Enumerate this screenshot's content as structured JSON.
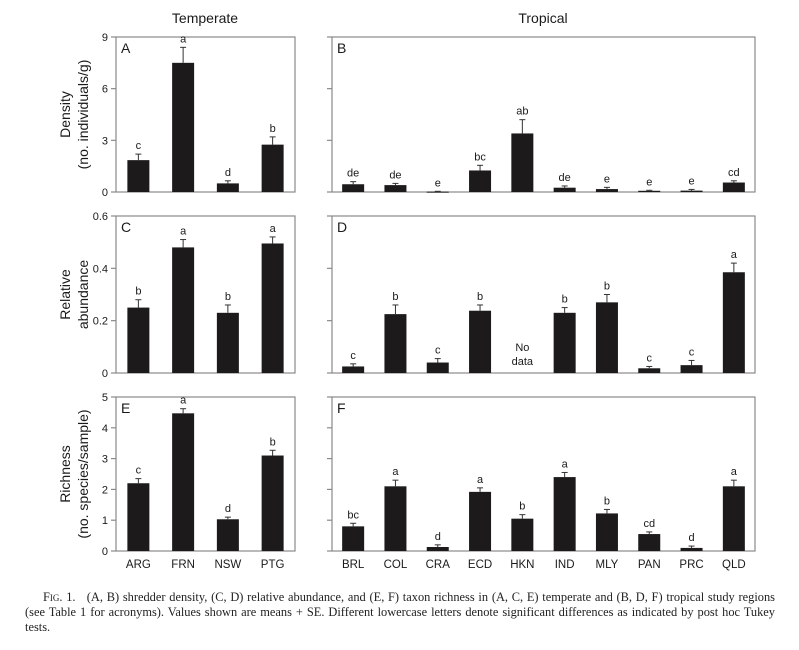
{
  "column_titles": {
    "temperate": "Temperate",
    "tropical": "Tropical"
  },
  "caption": {
    "label": "Fig. 1.",
    "text": "(A, B) shredder density, (C, D) relative abundance, and (E, F) taxon richness in (A, C, E) temperate and (B, D, F) tropical study regions (see Table 1 for acronyms). Values shown are means + SE. Different lowercase letters denote significant differences as indicated by post hoc Tukey tests."
  },
  "chart_data": [
    {
      "type": "bar",
      "panel": "A",
      "group": "Temperate",
      "ylabel": [
        "Density",
        "(no. individuals/g)"
      ],
      "ylim": [
        0,
        9
      ],
      "yticks": [
        0,
        3,
        6,
        9
      ],
      "ytick_labels": [
        "0",
        "3",
        "6",
        "9"
      ],
      "categories": [
        "ARG",
        "FRN",
        "NSW",
        "PTG"
      ],
      "values": [
        1.85,
        7.5,
        0.5,
        2.75
      ],
      "se_upper": [
        2.2,
        8.4,
        0.65,
        3.2
      ],
      "letters": [
        "c",
        "a",
        "d",
        "b"
      ]
    },
    {
      "type": "bar",
      "panel": "B",
      "group": "Tropical",
      "ylim": [
        0,
        9
      ],
      "yticks": [
        0,
        3,
        6,
        9
      ],
      "categories": [
        "BRL",
        "COL",
        "CRA",
        "ECD",
        "HKN",
        "IND",
        "MLY",
        "PAN",
        "PRC",
        "QLD"
      ],
      "values": [
        0.45,
        0.4,
        0.02,
        1.25,
        3.4,
        0.25,
        0.17,
        0.07,
        0.08,
        0.55
      ],
      "se_upper": [
        0.6,
        0.5,
        0.04,
        1.55,
        4.2,
        0.35,
        0.27,
        0.1,
        0.15,
        0.65
      ],
      "letters": [
        "de",
        "de",
        "e",
        "bc",
        "ab",
        "de",
        "e",
        "e",
        "e",
        "cd"
      ]
    },
    {
      "type": "bar",
      "panel": "C",
      "group": "Temperate",
      "ylabel": [
        "Relative",
        "abundance"
      ],
      "ylim": [
        0,
        0.6
      ],
      "yticks": [
        0,
        0.2,
        0.4,
        0.6
      ],
      "ytick_labels": [
        "0",
        "0.2",
        "0.4",
        "0.6"
      ],
      "categories": [
        "ARG",
        "FRN",
        "NSW",
        "PTG"
      ],
      "values": [
        0.25,
        0.48,
        0.23,
        0.495
      ],
      "se_upper": [
        0.28,
        0.51,
        0.26,
        0.52
      ],
      "letters": [
        "b",
        "a",
        "b",
        "a"
      ]
    },
    {
      "type": "bar",
      "panel": "D",
      "group": "Tropical",
      "ylim": [
        0,
        0.6
      ],
      "yticks": [
        0,
        0.2,
        0.4,
        0.6
      ],
      "categories": [
        "BRL",
        "COL",
        "CRA",
        "ECD",
        "HKN",
        "IND",
        "MLY",
        "PAN",
        "PRC",
        "QLD"
      ],
      "values": [
        0.025,
        0.225,
        0.04,
        0.238,
        null,
        0.23,
        0.27,
        0.018,
        0.03,
        0.385
      ],
      "se_upper": [
        0.035,
        0.26,
        0.055,
        0.26,
        null,
        0.25,
        0.3,
        0.025,
        0.048,
        0.42
      ],
      "letters": [
        "c",
        "b",
        "c",
        "b",
        "",
        "b",
        "b",
        "c",
        "c",
        "a"
      ],
      "annotations": [
        {
          "category": "HKN",
          "text": [
            "No",
            "data"
          ]
        }
      ]
    },
    {
      "type": "bar",
      "panel": "E",
      "group": "Temperate",
      "ylabel": [
        "Richness",
        "(no. species/sample)"
      ],
      "ylim": [
        0,
        5
      ],
      "yticks": [
        0,
        1,
        2,
        3,
        4,
        5
      ],
      "ytick_labels": [
        "0",
        "1",
        "2",
        "3",
        "4",
        "5"
      ],
      "categories": [
        "ARG",
        "FRN",
        "NSW",
        "PTG"
      ],
      "values": [
        2.2,
        4.47,
        1.03,
        3.1
      ],
      "se_upper": [
        2.35,
        4.62,
        1.1,
        3.27
      ],
      "letters": [
        "c",
        "a",
        "d",
        "b"
      ]
    },
    {
      "type": "bar",
      "panel": "F",
      "group": "Tropical",
      "ylim": [
        0,
        5
      ],
      "yticks": [
        0,
        1,
        2,
        3,
        4,
        5
      ],
      "categories": [
        "BRL",
        "COL",
        "CRA",
        "ECD",
        "HKN",
        "IND",
        "MLY",
        "PAN",
        "PRC",
        "QLD"
      ],
      "values": [
        0.8,
        2.1,
        0.13,
        1.92,
        1.05,
        2.4,
        1.22,
        0.55,
        0.1,
        2.1
      ],
      "se_upper": [
        0.9,
        2.3,
        0.2,
        2.05,
        1.18,
        2.55,
        1.35,
        0.62,
        0.16,
        2.3
      ],
      "letters": [
        "bc",
        "a",
        "d",
        "a",
        "b",
        "a",
        "b",
        "cd",
        "d",
        "a"
      ]
    }
  ]
}
